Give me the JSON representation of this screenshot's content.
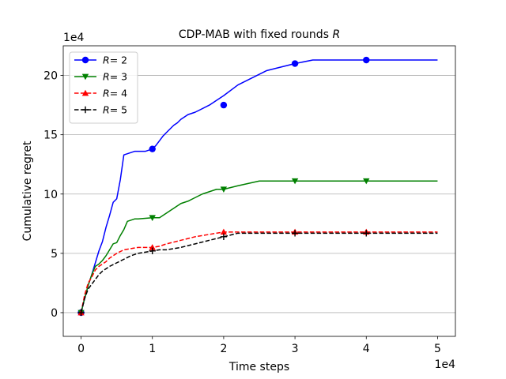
{
  "chart_data": {
    "type": "line",
    "title_prefix": "CDP-MAB with fixed rounds ",
    "title_var": "R",
    "xlabel": "Time steps",
    "ylabel": "Cumulative regret",
    "x_offset_label": "1e4",
    "y_offset_label": "1e4",
    "xlim": [
      -0.25,
      5.25
    ],
    "ylim": [
      -2.0,
      22.5
    ],
    "xticks": [
      0,
      1,
      2,
      3,
      4,
      5
    ],
    "xtick_labels": [
      "0",
      "1",
      "2",
      "3",
      "4",
      "5"
    ],
    "yticks": [
      0,
      5,
      10,
      15,
      20
    ],
    "ytick_labels": [
      "0",
      "5",
      "10",
      "15",
      "20"
    ],
    "grid": "y",
    "legend_position": "top-left",
    "series": [
      {
        "name": "R= 2",
        "name_var": "R",
        "name_value": "= 2",
        "color": "#0000ff",
        "dash": "solid",
        "marker": "circle",
        "x": [
          0,
          0.05,
          0.1,
          0.15,
          0.2,
          0.25,
          0.3,
          0.35,
          0.4,
          0.45,
          0.5,
          0.55,
          0.6,
          0.65,
          0.7,
          0.75,
          0.8,
          0.85,
          0.9,
          0.95,
          1.0,
          1.05,
          1.1,
          1.15,
          1.2,
          1.25,
          1.3,
          1.35,
          1.4,
          1.45,
          1.5,
          1.6,
          1.8,
          2.0,
          2.2,
          2.4,
          2.6,
          2.8,
          3.0,
          3.25,
          3.5,
          4.0,
          5.0
        ],
        "y": [
          0,
          1.2,
          2.3,
          3.2,
          4.2,
          5.2,
          6.0,
          7.2,
          8.2,
          9.3,
          9.6,
          11.2,
          13.3,
          13.4,
          13.5,
          13.6,
          13.6,
          13.6,
          13.6,
          13.7,
          13.8,
          14.1,
          14.5,
          14.9,
          15.2,
          15.5,
          15.8,
          16.0,
          16.3,
          16.5,
          16.7,
          16.9,
          17.5,
          18.3,
          19.2,
          19.8,
          20.4,
          20.7,
          21.0,
          21.3,
          21.3,
          21.3,
          21.3
        ],
        "markers_at": [
          [
            0,
            0
          ],
          [
            1,
            13.8
          ],
          [
            2,
            17.5
          ],
          [
            3,
            21.0
          ],
          [
            4,
            21.3
          ]
        ]
      },
      {
        "name": "R= 3",
        "name_var": "R",
        "name_value": "= 3",
        "color": "#008000",
        "dash": "solid",
        "marker": "triangle-down",
        "x": [
          0,
          0.05,
          0.1,
          0.15,
          0.2,
          0.25,
          0.3,
          0.35,
          0.4,
          0.45,
          0.5,
          0.55,
          0.6,
          0.65,
          0.7,
          0.75,
          0.8,
          1.0,
          1.1,
          1.2,
          1.3,
          1.4,
          1.5,
          1.6,
          1.7,
          1.8,
          1.9,
          2.0,
          2.2,
          2.5,
          3.0,
          4.0,
          5.0
        ],
        "y": [
          0,
          1.2,
          2.3,
          3.2,
          3.9,
          4.1,
          4.4,
          4.8,
          5.3,
          5.8,
          5.9,
          6.5,
          7.0,
          7.7,
          7.8,
          7.9,
          7.9,
          8.0,
          8.0,
          8.4,
          8.8,
          9.2,
          9.4,
          9.7,
          10.0,
          10.2,
          10.4,
          10.4,
          10.7,
          11.1,
          11.1,
          11.1,
          11.1
        ],
        "markers_at": [
          [
            0,
            0
          ],
          [
            1,
            8.0
          ],
          [
            2,
            10.4
          ],
          [
            3,
            11.1
          ],
          [
            4,
            11.1
          ]
        ]
      },
      {
        "name": "R= 4",
        "name_var": "R",
        "name_value": "= 4",
        "color": "#ff0000",
        "dash": "dashed",
        "marker": "triangle-up",
        "x": [
          0,
          0.05,
          0.1,
          0.15,
          0.2,
          0.25,
          0.3,
          0.35,
          0.4,
          0.5,
          0.6,
          0.7,
          0.8,
          0.9,
          1.0,
          1.1,
          1.2,
          1.4,
          1.6,
          1.8,
          2.0,
          2.2,
          3.0,
          4.0,
          5.0
        ],
        "y": [
          0,
          1.5,
          2.5,
          3.0,
          3.6,
          3.9,
          4.1,
          4.3,
          4.6,
          5.0,
          5.3,
          5.4,
          5.5,
          5.5,
          5.5,
          5.6,
          5.8,
          6.1,
          6.4,
          6.6,
          6.8,
          6.8,
          6.8,
          6.8,
          6.8
        ],
        "markers_at": [
          [
            0,
            0
          ],
          [
            1,
            5.5
          ],
          [
            2,
            6.8
          ],
          [
            3,
            6.8
          ],
          [
            4,
            6.8
          ]
        ]
      },
      {
        "name": "R= 5",
        "name_var": "R",
        "name_value": "= 5",
        "color": "#000000",
        "dash": "dashed",
        "marker": "plus",
        "x": [
          0,
          0.05,
          0.1,
          0.15,
          0.2,
          0.25,
          0.3,
          0.35,
          0.4,
          0.5,
          0.6,
          0.7,
          0.8,
          0.9,
          1.0,
          1.1,
          1.2,
          1.4,
          1.6,
          1.8,
          2.0,
          2.2,
          3.0,
          4.0,
          5.0
        ],
        "y": [
          0,
          1.2,
          2.0,
          2.4,
          2.8,
          3.2,
          3.5,
          3.7,
          3.9,
          4.2,
          4.5,
          4.8,
          5.0,
          5.1,
          5.2,
          5.3,
          5.3,
          5.5,
          5.8,
          6.1,
          6.4,
          6.7,
          6.7,
          6.7,
          6.7
        ],
        "markers_at": [
          [
            0,
            0
          ],
          [
            1,
            5.2
          ],
          [
            2,
            6.4
          ],
          [
            3,
            6.7
          ],
          [
            4,
            6.7
          ]
        ]
      }
    ]
  }
}
